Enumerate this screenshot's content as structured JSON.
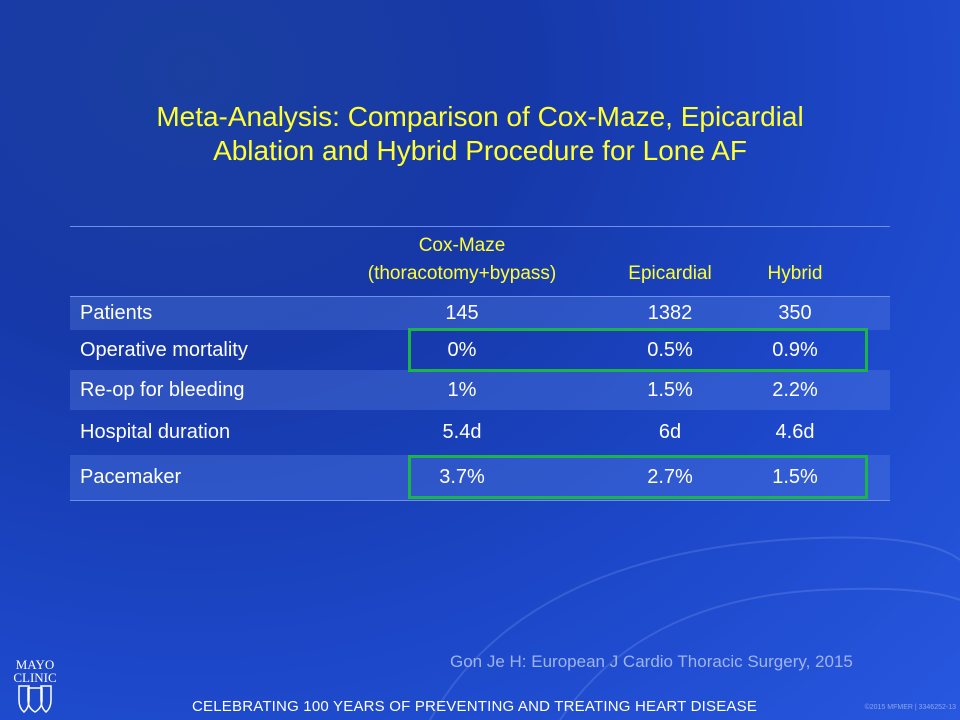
{
  "title_line1": "Meta-Analysis: Comparison of Cox-Maze, Epicardial",
  "title_line2": "Ablation and Hybrid Procedure for Lone AF",
  "table": {
    "headers": {
      "cox_line1": "Cox-Maze",
      "cox_line2": "(thoracotomy+bypass)",
      "epicardial": "Epicardial",
      "hybrid": "Hybrid"
    },
    "rows": [
      {
        "label": "Patients",
        "cox": "145",
        "epi": "1382",
        "hyb": "350"
      },
      {
        "label": "Operative mortality",
        "cox": "0%",
        "epi": "0.5%",
        "hyb": "0.9%"
      },
      {
        "label": "Re-op for bleeding",
        "cox": "1%",
        "epi": "1.5%",
        "hyb": "2.2%"
      },
      {
        "label": "Hospital duration",
        "cox": "5.4d",
        "epi": "6d",
        "hyb": "4.6d"
      },
      {
        "label": "Pacemaker",
        "cox": "3.7%",
        "epi": "2.7%",
        "hyb": "1.5%"
      }
    ],
    "highlighted_rows": [
      "Operative mortality",
      "Pacemaker"
    ],
    "highlight_color": "#1bb34a"
  },
  "citation": "Gon Je H: European J Cardio Thoracic Surgery, 2015",
  "footer": "CELEBRATING 100 YEARS OF PREVENTING AND TREATING HEART DISEASE",
  "copyright": "©2015 MFMER | 3346252-13",
  "logo": {
    "line1": "MAYO",
    "line2": "CLINIC"
  }
}
